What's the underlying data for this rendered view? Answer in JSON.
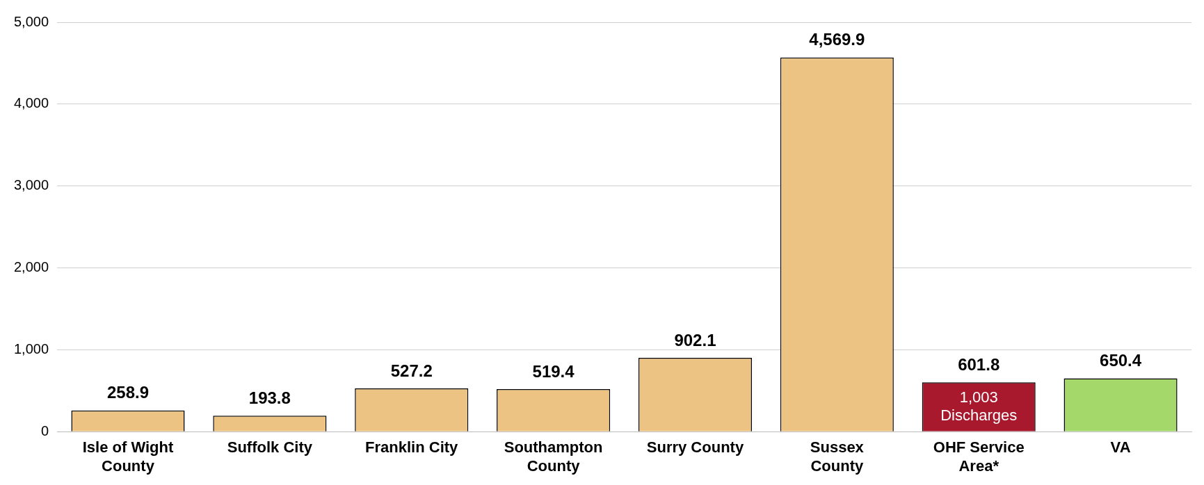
{
  "chart_data": {
    "type": "bar",
    "categories": [
      "Isle of Wight County",
      "Suffolk City",
      "Franklin City",
      "Southampton County",
      "Surry County",
      "Sussex County",
      "OHF Service Area*",
      "VA"
    ],
    "values": [
      258.9,
      193.8,
      527.2,
      519.4,
      902.1,
      4569.9,
      601.8,
      650.4
    ],
    "value_labels": [
      "258.9",
      "193.8",
      "527.2",
      "519.4",
      "902.1",
      "4,569.9",
      "601.8",
      "650.4"
    ],
    "colors": [
      "#edc383",
      "#edc383",
      "#edc383",
      "#edc383",
      "#edc383",
      "#edc383",
      "#a8192e",
      "#a5d86b"
    ],
    "ylim": [
      0,
      5000
    ],
    "yticks": [
      0,
      {
        "value": 1000,
        "label": "1,000"
      },
      {
        "value": 2000,
        "label": "2,000"
      },
      {
        "value": 3000,
        "label": "3,000"
      },
      {
        "value": 4000,
        "label": "4,000"
      },
      {
        "value": 5000,
        "label": "5,000"
      }
    ],
    "grid": "y",
    "legend": false,
    "annotations": [
      "1,003 Discharges"
    ]
  }
}
